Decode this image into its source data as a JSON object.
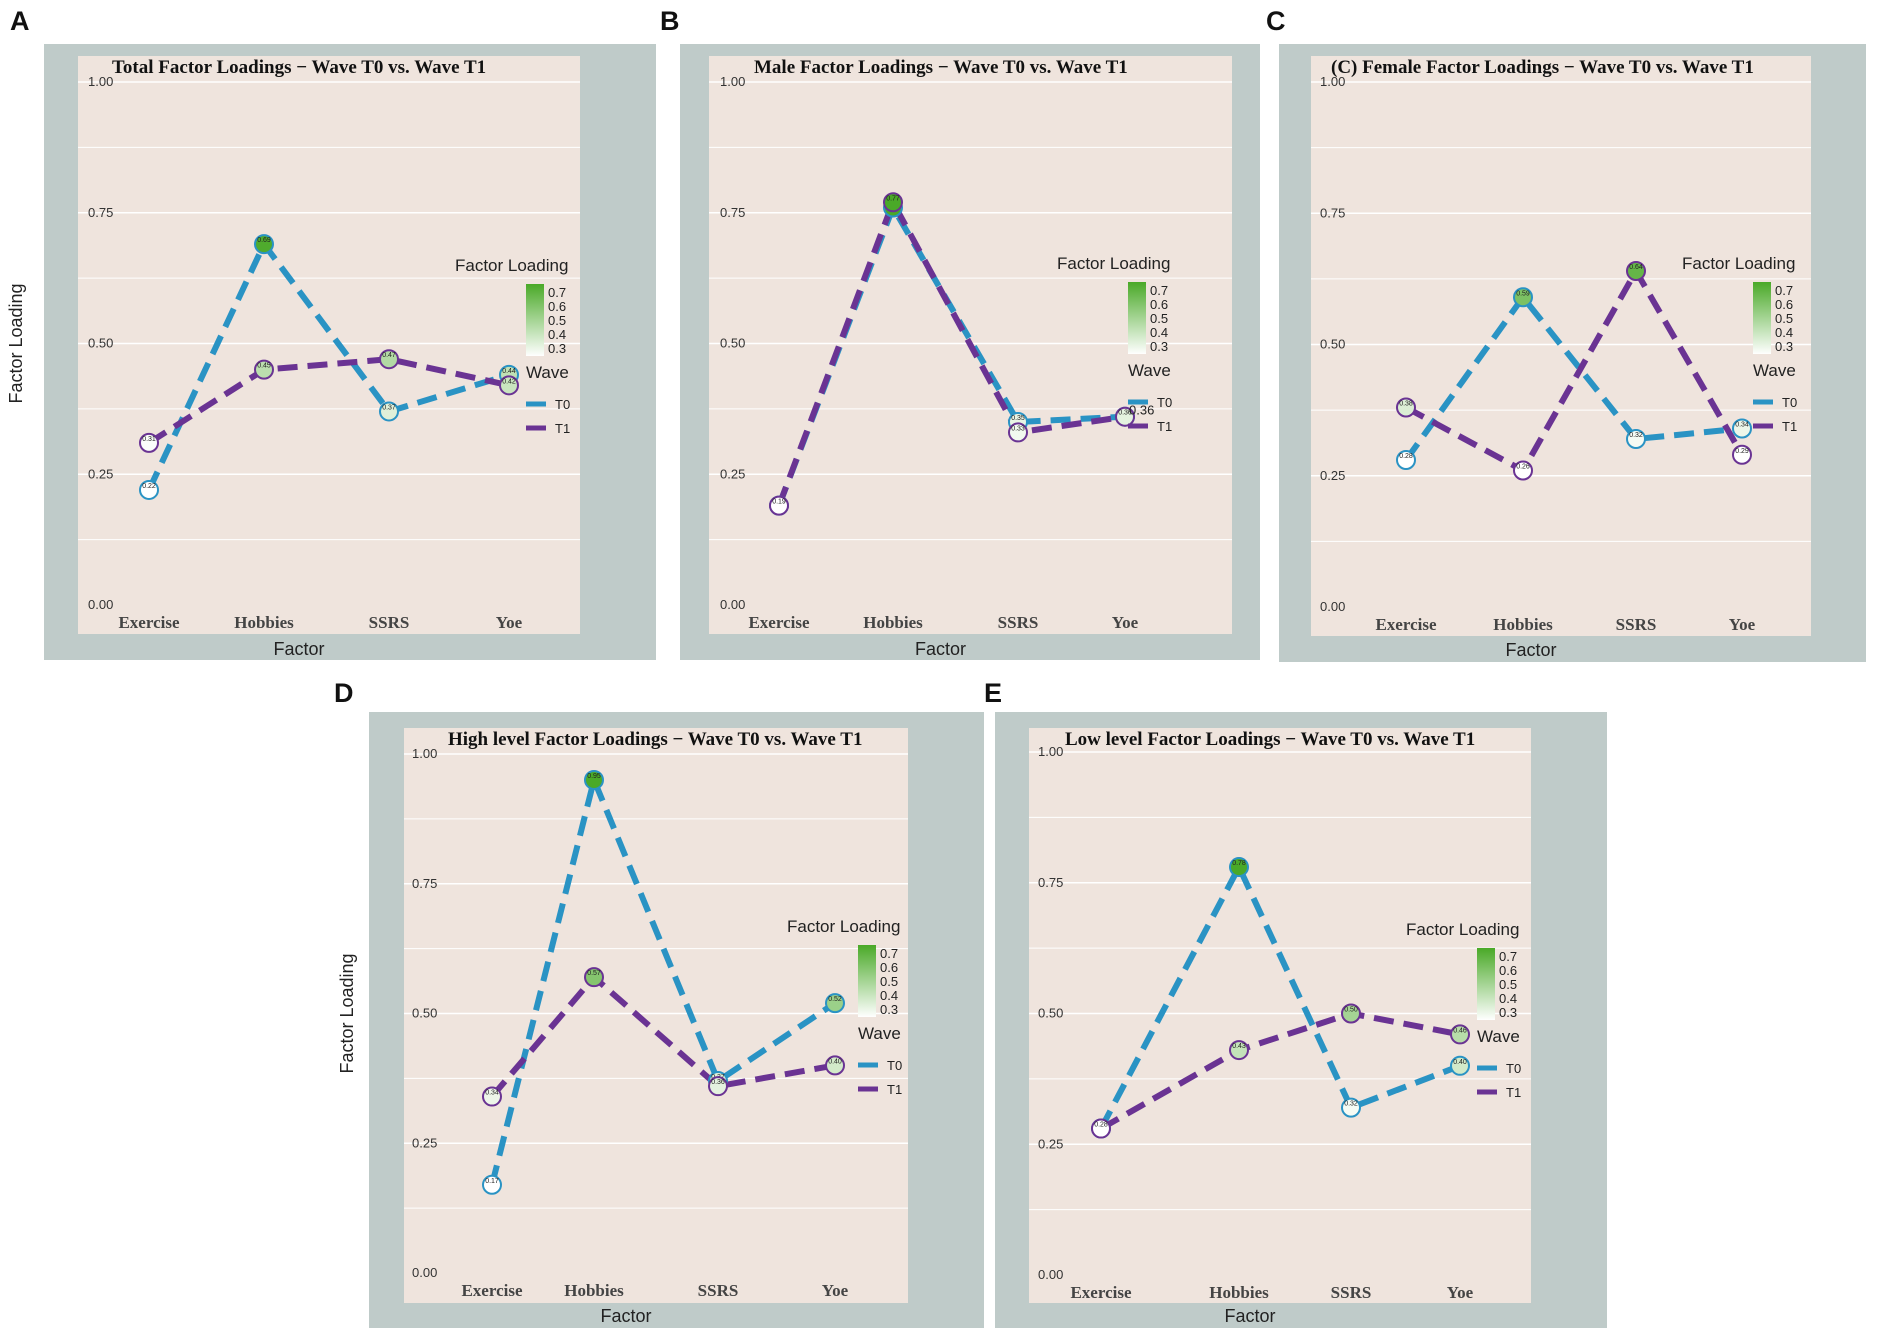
{
  "chart_data": [
    {
      "panel": "A",
      "type": "line",
      "title": "Total    Factor Loadings − Wave T0 vs. Wave T1",
      "xlabel": "Factor",
      "ylabel": "Factor Loading",
      "categories": [
        "Exercise",
        "Hobbies",
        "SSRS",
        "Yoe"
      ],
      "ylim": [
        0,
        1
      ],
      "yticks": [
        "0.00",
        "0.25",
        "0.50",
        "0.75",
        "1.00"
      ],
      "series": [
        {
          "name": "T0",
          "values": [
            0.22,
            0.69,
            0.37,
            0.44
          ]
        },
        {
          "name": "T1",
          "values": [
            0.31,
            0.45,
            0.47,
            0.42
          ]
        }
      ],
      "point_labels": {
        "T0": [
          "0.22",
          "0.69",
          "0.37",
          "0.44"
        ],
        "T1": [
          "0.31",
          "0.45",
          "0.47",
          "0.42"
        ]
      },
      "legend": {
        "fill_title": "Factor Loading",
        "fill_ticks": [
          "0.7",
          "0.6",
          "0.5",
          "0.4",
          "0.3"
        ],
        "wave_title": "Wave",
        "wave_entries": [
          "T0",
          "T1"
        ]
      }
    },
    {
      "panel": "B",
      "type": "line",
      "title": "Male  Factor Loadings − Wave T0 vs. Wave T1",
      "xlabel": "Factor",
      "ylabel": "",
      "categories": [
        "Exercise",
        "Hobbies",
        "SSRS",
        "Yoe"
      ],
      "ylim": [
        0,
        1
      ],
      "yticks": [
        "0.00",
        "0.25",
        "0.50",
        "0.75",
        "1.00"
      ],
      "series": [
        {
          "name": "T0",
          "values": [
            0.19,
            0.76,
            0.35,
            0.36
          ]
        },
        {
          "name": "T1",
          "values": [
            0.19,
            0.77,
            0.33,
            0.36
          ]
        }
      ],
      "point_labels": {
        "T0": [
          "0.19",
          "0.76",
          "0.35",
          "0.36"
        ],
        "T1": [
          "0.19",
          "0.77",
          "0.33",
          "0.36"
        ]
      },
      "legend": {
        "fill_title": "Factor Loading",
        "fill_ticks": [
          "0.7",
          "0.6",
          "0.5",
          "0.4",
          "0.3"
        ],
        "wave_title": "Wave",
        "wave_entries": [
          "T0",
          "T1"
        ]
      }
    },
    {
      "panel": "C",
      "type": "line",
      "title": "(C) Female     Factor Loadings − Wave T0 vs. Wave T1",
      "xlabel": "Factor",
      "ylabel": "",
      "categories": [
        "Exercise",
        "Hobbies",
        "SSRS",
        "Yoe"
      ],
      "ylim": [
        0,
        1
      ],
      "yticks": [
        "0.00",
        "0.25",
        "0.50",
        "0.75",
        "1.00"
      ],
      "series": [
        {
          "name": "T0",
          "values": [
            0.28,
            0.59,
            0.32,
            0.34
          ]
        },
        {
          "name": "T1",
          "values": [
            0.38,
            0.26,
            0.64,
            0.29
          ]
        }
      ],
      "point_labels": {
        "T0": [
          "0.28",
          "0.59",
          "0.32",
          "0.34"
        ],
        "T1": [
          "0.38",
          "0.26",
          "0.64",
          "0.29"
        ]
      },
      "legend": {
        "fill_title": "Factor Loading",
        "fill_ticks": [
          "0.7",
          "0.6",
          "0.5",
          "0.4",
          "0.3"
        ],
        "wave_title": "Wave",
        "wave_entries": [
          "T0",
          "T1"
        ]
      }
    },
    {
      "panel": "D",
      "type": "line",
      "title": "High level     Factor Loadings − Wave T0 vs. Wave T1",
      "xlabel": "Factor",
      "ylabel": "Factor Loading",
      "categories": [
        "Exercise",
        "Hobbies",
        "SSRS",
        "Yoe"
      ],
      "ylim": [
        0,
        1
      ],
      "yticks": [
        "0.00",
        "0.25",
        "0.50",
        "0.75",
        "1.00"
      ],
      "series": [
        {
          "name": "T0",
          "values": [
            0.17,
            0.95,
            0.37,
            0.52
          ]
        },
        {
          "name": "T1",
          "values": [
            0.34,
            0.57,
            0.36,
            0.4
          ]
        }
      ],
      "point_labels": {
        "T0": [
          "0.17",
          "0.95",
          "0.37",
          "0.52"
        ],
        "T1": [
          "0.34",
          "0.57",
          "0.36",
          "0.40"
        ]
      },
      "legend": {
        "fill_title": "Factor Loading",
        "fill_ticks": [
          "0.7",
          "0.6",
          "0.5",
          "0.4",
          "0.3"
        ],
        "wave_title": "Wave",
        "wave_entries": [
          "T0",
          "T1"
        ]
      }
    },
    {
      "panel": "E",
      "type": "line",
      "title": "Low level      Factor Loadings − Wave T0 vs. Wave T1",
      "xlabel": "Factor",
      "ylabel": "",
      "categories": [
        "Exercise",
        "Hobbies",
        "SSRS",
        "Yoe"
      ],
      "ylim": [
        0,
        1
      ],
      "yticks": [
        "0.00",
        "0.25",
        "0.50",
        "0.75",
        "1.00"
      ],
      "series": [
        {
          "name": "T0",
          "values": [
            0.28,
            0.78,
            0.32,
            0.4
          ]
        },
        {
          "name": "T1",
          "values": [
            0.28,
            0.43,
            0.5,
            0.46
          ]
        }
      ],
      "point_labels": {
        "T0": [
          "0.28",
          "0.78",
          "0.32",
          "0.40"
        ],
        "T1": [
          "0.28",
          "0.43",
          "0.50",
          "0.46"
        ]
      },
      "legend": {
        "fill_title": "Factor Loading",
        "fill_ticks": [
          "0.7",
          "0.6",
          "0.5",
          "0.4",
          "0.3"
        ],
        "wave_title": "Wave",
        "wave_entries": [
          "T0",
          "T1"
        ]
      }
    }
  ],
  "colors": {
    "T0": "#2a93c4",
    "T1": "#6a3393",
    "panel_bg": "#bfcbc9",
    "plot_bg": "#efe4dd",
    "gradient_high": "#4aa928",
    "gradient_low": "#ffffff"
  },
  "annotations": {
    "male_yoe_label": "0.36"
  }
}
